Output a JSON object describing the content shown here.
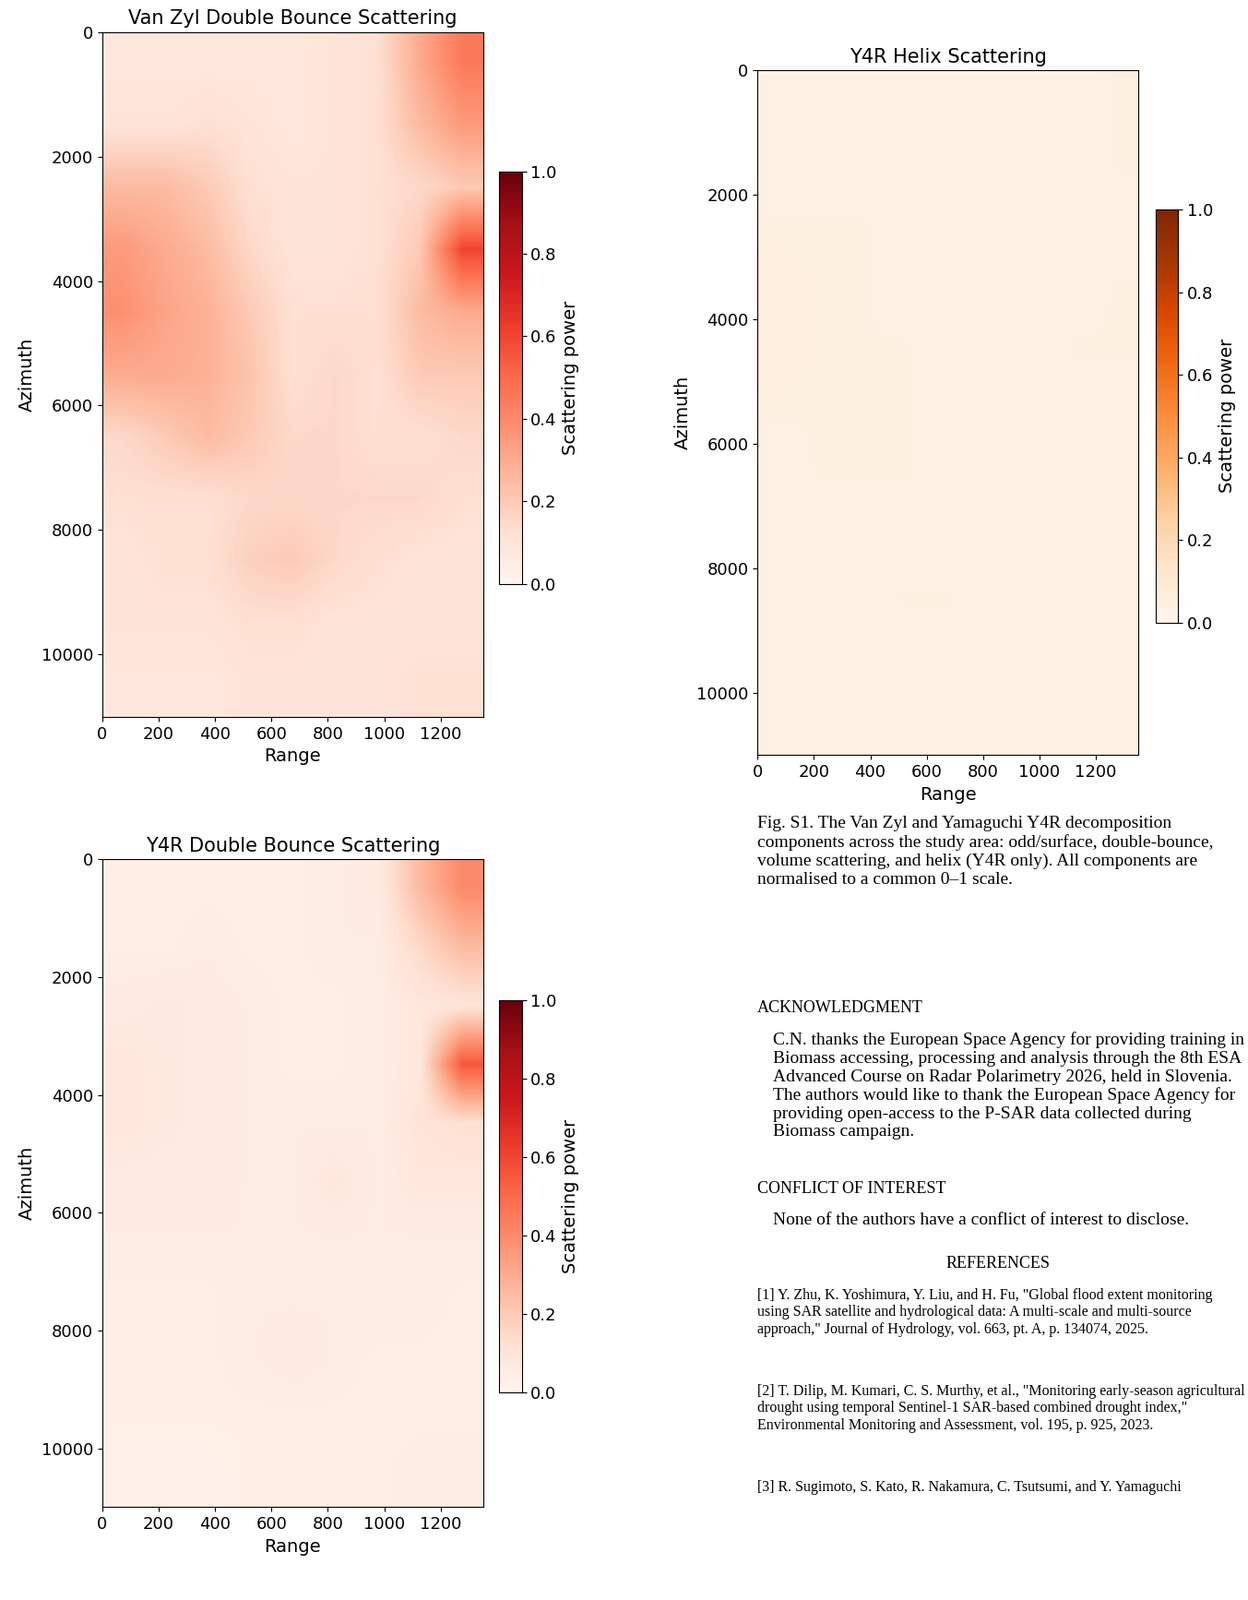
{
  "chart_data": [
    {
      "type": "heatmap",
      "title": "Van Zyl Double Bounce Scattering",
      "x_label": "Range",
      "y_label": "Azimuth",
      "xlim": [
        0,
        1350
      ],
      "xticks": [
        0,
        200,
        400,
        600,
        800,
        1000,
        1200
      ],
      "ylim": [
        11000,
        0
      ],
      "yticks": [
        0,
        2000,
        4000,
        6000,
        8000,
        10000
      ],
      "color": "Reds",
      "colorbar_label": "Scattering power",
      "colorbar_range": [
        0,
        1
      ],
      "colorbar_ticks": [
        {
          "value": 0,
          "label": "0.0"
        },
        0.2,
        0.4,
        0.6,
        0.8,
        {
          "value": 1,
          "label": "1.0"
        }
      ],
      "cells": [
        [
          0.08,
          0.08,
          0.08,
          0.08,
          0.08,
          0.1,
          0.12,
          0.3,
          0.45
        ],
        [
          0.1,
          0.1,
          0.12,
          0.1,
          0.08,
          0.1,
          0.12,
          0.25,
          0.35
        ],
        [
          0.25,
          0.25,
          0.2,
          0.12,
          0.1,
          0.1,
          0.12,
          0.15,
          0.2
        ],
        [
          0.35,
          0.3,
          0.25,
          0.15,
          0.1,
          0.1,
          0.12,
          0.2,
          0.6
        ],
        [
          0.38,
          0.32,
          0.28,
          0.2,
          0.12,
          0.12,
          0.12,
          0.25,
          0.3
        ],
        [
          0.3,
          0.3,
          0.28,
          0.22,
          0.12,
          0.15,
          0.12,
          0.2,
          0.2
        ],
        [
          0.15,
          0.2,
          0.25,
          0.2,
          0.15,
          0.15,
          0.12,
          0.12,
          0.15
        ],
        [
          0.12,
          0.12,
          0.12,
          0.15,
          0.15,
          0.15,
          0.15,
          0.15,
          0.12
        ],
        [
          0.1,
          0.12,
          0.12,
          0.18,
          0.2,
          0.15,
          0.12,
          0.1,
          0.1
        ],
        [
          0.1,
          0.1,
          0.1,
          0.12,
          0.12,
          0.1,
          0.1,
          0.1,
          0.1
        ],
        [
          0.08,
          0.08,
          0.08,
          0.1,
          0.1,
          0.1,
          0.1,
          0.12,
          0.12
        ]
      ]
    },
    {
      "type": "heatmap",
      "title": "Y4R Helix Scattering",
      "x_label": "Range",
      "y_label": "Azimuth",
      "xlim": [
        0,
        1350
      ],
      "xticks": [
        0,
        200,
        400,
        600,
        800,
        1000,
        1200
      ],
      "ylim": [
        11000,
        0
      ],
      "yticks": [
        0,
        2000,
        4000,
        6000,
        8000,
        10000
      ],
      "color": "Oranges",
      "colorbar_label": "Scattering power",
      "colorbar_range": [
        0,
        1
      ],
      "colorbar_ticks": [
        {
          "value": 0,
          "label": "0.0"
        },
        0.2,
        0.4,
        0.6,
        0.8,
        {
          "value": 1,
          "label": "1.0"
        }
      ],
      "cells": [
        [
          0.03,
          0.03,
          0.03,
          0.03,
          0.03,
          0.03,
          0.03,
          0.03,
          0.04
        ],
        [
          0.03,
          0.03,
          0.03,
          0.03,
          0.03,
          0.03,
          0.03,
          0.03,
          0.04
        ],
        [
          0.04,
          0.04,
          0.04,
          0.03,
          0.03,
          0.03,
          0.03,
          0.03,
          0.03
        ],
        [
          0.05,
          0.04,
          0.04,
          0.03,
          0.03,
          0.03,
          0.03,
          0.03,
          0.04
        ],
        [
          0.05,
          0.04,
          0.04,
          0.04,
          0.03,
          0.03,
          0.03,
          0.04,
          0.04
        ],
        [
          0.04,
          0.04,
          0.04,
          0.04,
          0.03,
          0.03,
          0.03,
          0.03,
          0.03
        ],
        [
          0.03,
          0.04,
          0.04,
          0.04,
          0.03,
          0.03,
          0.03,
          0.03,
          0.03
        ],
        [
          0.03,
          0.03,
          0.03,
          0.03,
          0.03,
          0.03,
          0.03,
          0.03,
          0.03
        ],
        [
          0.03,
          0.03,
          0.03,
          0.04,
          0.04,
          0.03,
          0.03,
          0.03,
          0.03
        ],
        [
          0.03,
          0.03,
          0.03,
          0.03,
          0.03,
          0.03,
          0.03,
          0.03,
          0.03
        ],
        [
          0.03,
          0.03,
          0.03,
          0.03,
          0.03,
          0.03,
          0.03,
          0.03,
          0.03
        ]
      ]
    },
    {
      "type": "heatmap",
      "title": "Y4R Double Bounce Scattering",
      "x_label": "Range",
      "y_label": "Azimuth",
      "xlim": [
        0,
        1350
      ],
      "xticks": [
        0,
        200,
        400,
        600,
        800,
        1000,
        1200
      ],
      "ylim": [
        11000,
        0
      ],
      "yticks": [
        0,
        2000,
        4000,
        6000,
        8000,
        10000
      ],
      "color": "Reds",
      "colorbar_label": "Scattering power",
      "colorbar_range": [
        0,
        1
      ],
      "colorbar_ticks": [
        {
          "value": 0,
          "label": "0.0"
        },
        0.2,
        0.4,
        0.6,
        0.8,
        {
          "value": 1,
          "label": "1.0"
        }
      ],
      "cells": [
        [
          0.04,
          0.04,
          0.04,
          0.04,
          0.04,
          0.05,
          0.06,
          0.25,
          0.4
        ],
        [
          0.04,
          0.04,
          0.05,
          0.04,
          0.04,
          0.05,
          0.05,
          0.15,
          0.25
        ],
        [
          0.06,
          0.07,
          0.06,
          0.05,
          0.04,
          0.04,
          0.05,
          0.08,
          0.1
        ],
        [
          0.08,
          0.07,
          0.06,
          0.05,
          0.04,
          0.04,
          0.05,
          0.08,
          0.55
        ],
        [
          0.08,
          0.07,
          0.06,
          0.05,
          0.05,
          0.05,
          0.05,
          0.1,
          0.12
        ],
        [
          0.06,
          0.06,
          0.06,
          0.05,
          0.05,
          0.08,
          0.05,
          0.08,
          0.08
        ],
        [
          0.05,
          0.05,
          0.05,
          0.05,
          0.05,
          0.05,
          0.05,
          0.05,
          0.05
        ],
        [
          0.04,
          0.04,
          0.04,
          0.05,
          0.05,
          0.05,
          0.05,
          0.05,
          0.04
        ],
        [
          0.04,
          0.04,
          0.04,
          0.05,
          0.06,
          0.05,
          0.04,
          0.04,
          0.04
        ],
        [
          0.04,
          0.04,
          0.04,
          0.04,
          0.04,
          0.04,
          0.04,
          0.04,
          0.04
        ],
        [
          0.03,
          0.03,
          0.03,
          0.04,
          0.04,
          0.04,
          0.04,
          0.05,
          0.05
        ]
      ]
    }
  ],
  "document": {
    "caption": "Fig. S1. The Van Zyl and Yamaguchi Y4R decomposition components across the study area: odd/surface, double-bounce, volume scattering, and helix (Y4R only). All components are normalised to a common 0–1 scale.",
    "sections": [
      {
        "heading": "ACKNOWLEDGMENT",
        "body": "C.N. thanks the European Space Agency for providing training in Biomass accessing, processing and analysis through the 8th ESA Advanced Course on Radar Polarimetry 2026, held in Slovenia. The authors would like to thank the European Space Agency for providing open-access to the P-SAR data collected during Biomass campaign."
      },
      {
        "heading": "CONFLICT OF INTEREST",
        "body": "None of the authors have a conflict of interest to disclose."
      }
    ],
    "references": {
      "heading": "REFERENCES",
      "items": [
        "[1] Y. Zhu, K. Yoshimura, Y. Liu, and H. Fu, \"Global flood extent monitoring using SAR satellite and hydrological data: A multi-scale and multi-source approach,\" Journal of Hydrology, vol. 663, pt. A, p. 134074, 2025.",
        "[2] T. Dilip, M. Kumari, C. S. Murthy, et al., \"Monitoring early-season agricultural drought using temporal Sentinel-1 SAR-based combined drought index,\" Environmental Monitoring and Assessment, vol. 195, p. 925, 2023.",
        "[3] R. Sugimoto, S. Kato, R. Nakamura, C. Tsutsumi, and Y. Yamaguchi"
      ]
    }
  }
}
